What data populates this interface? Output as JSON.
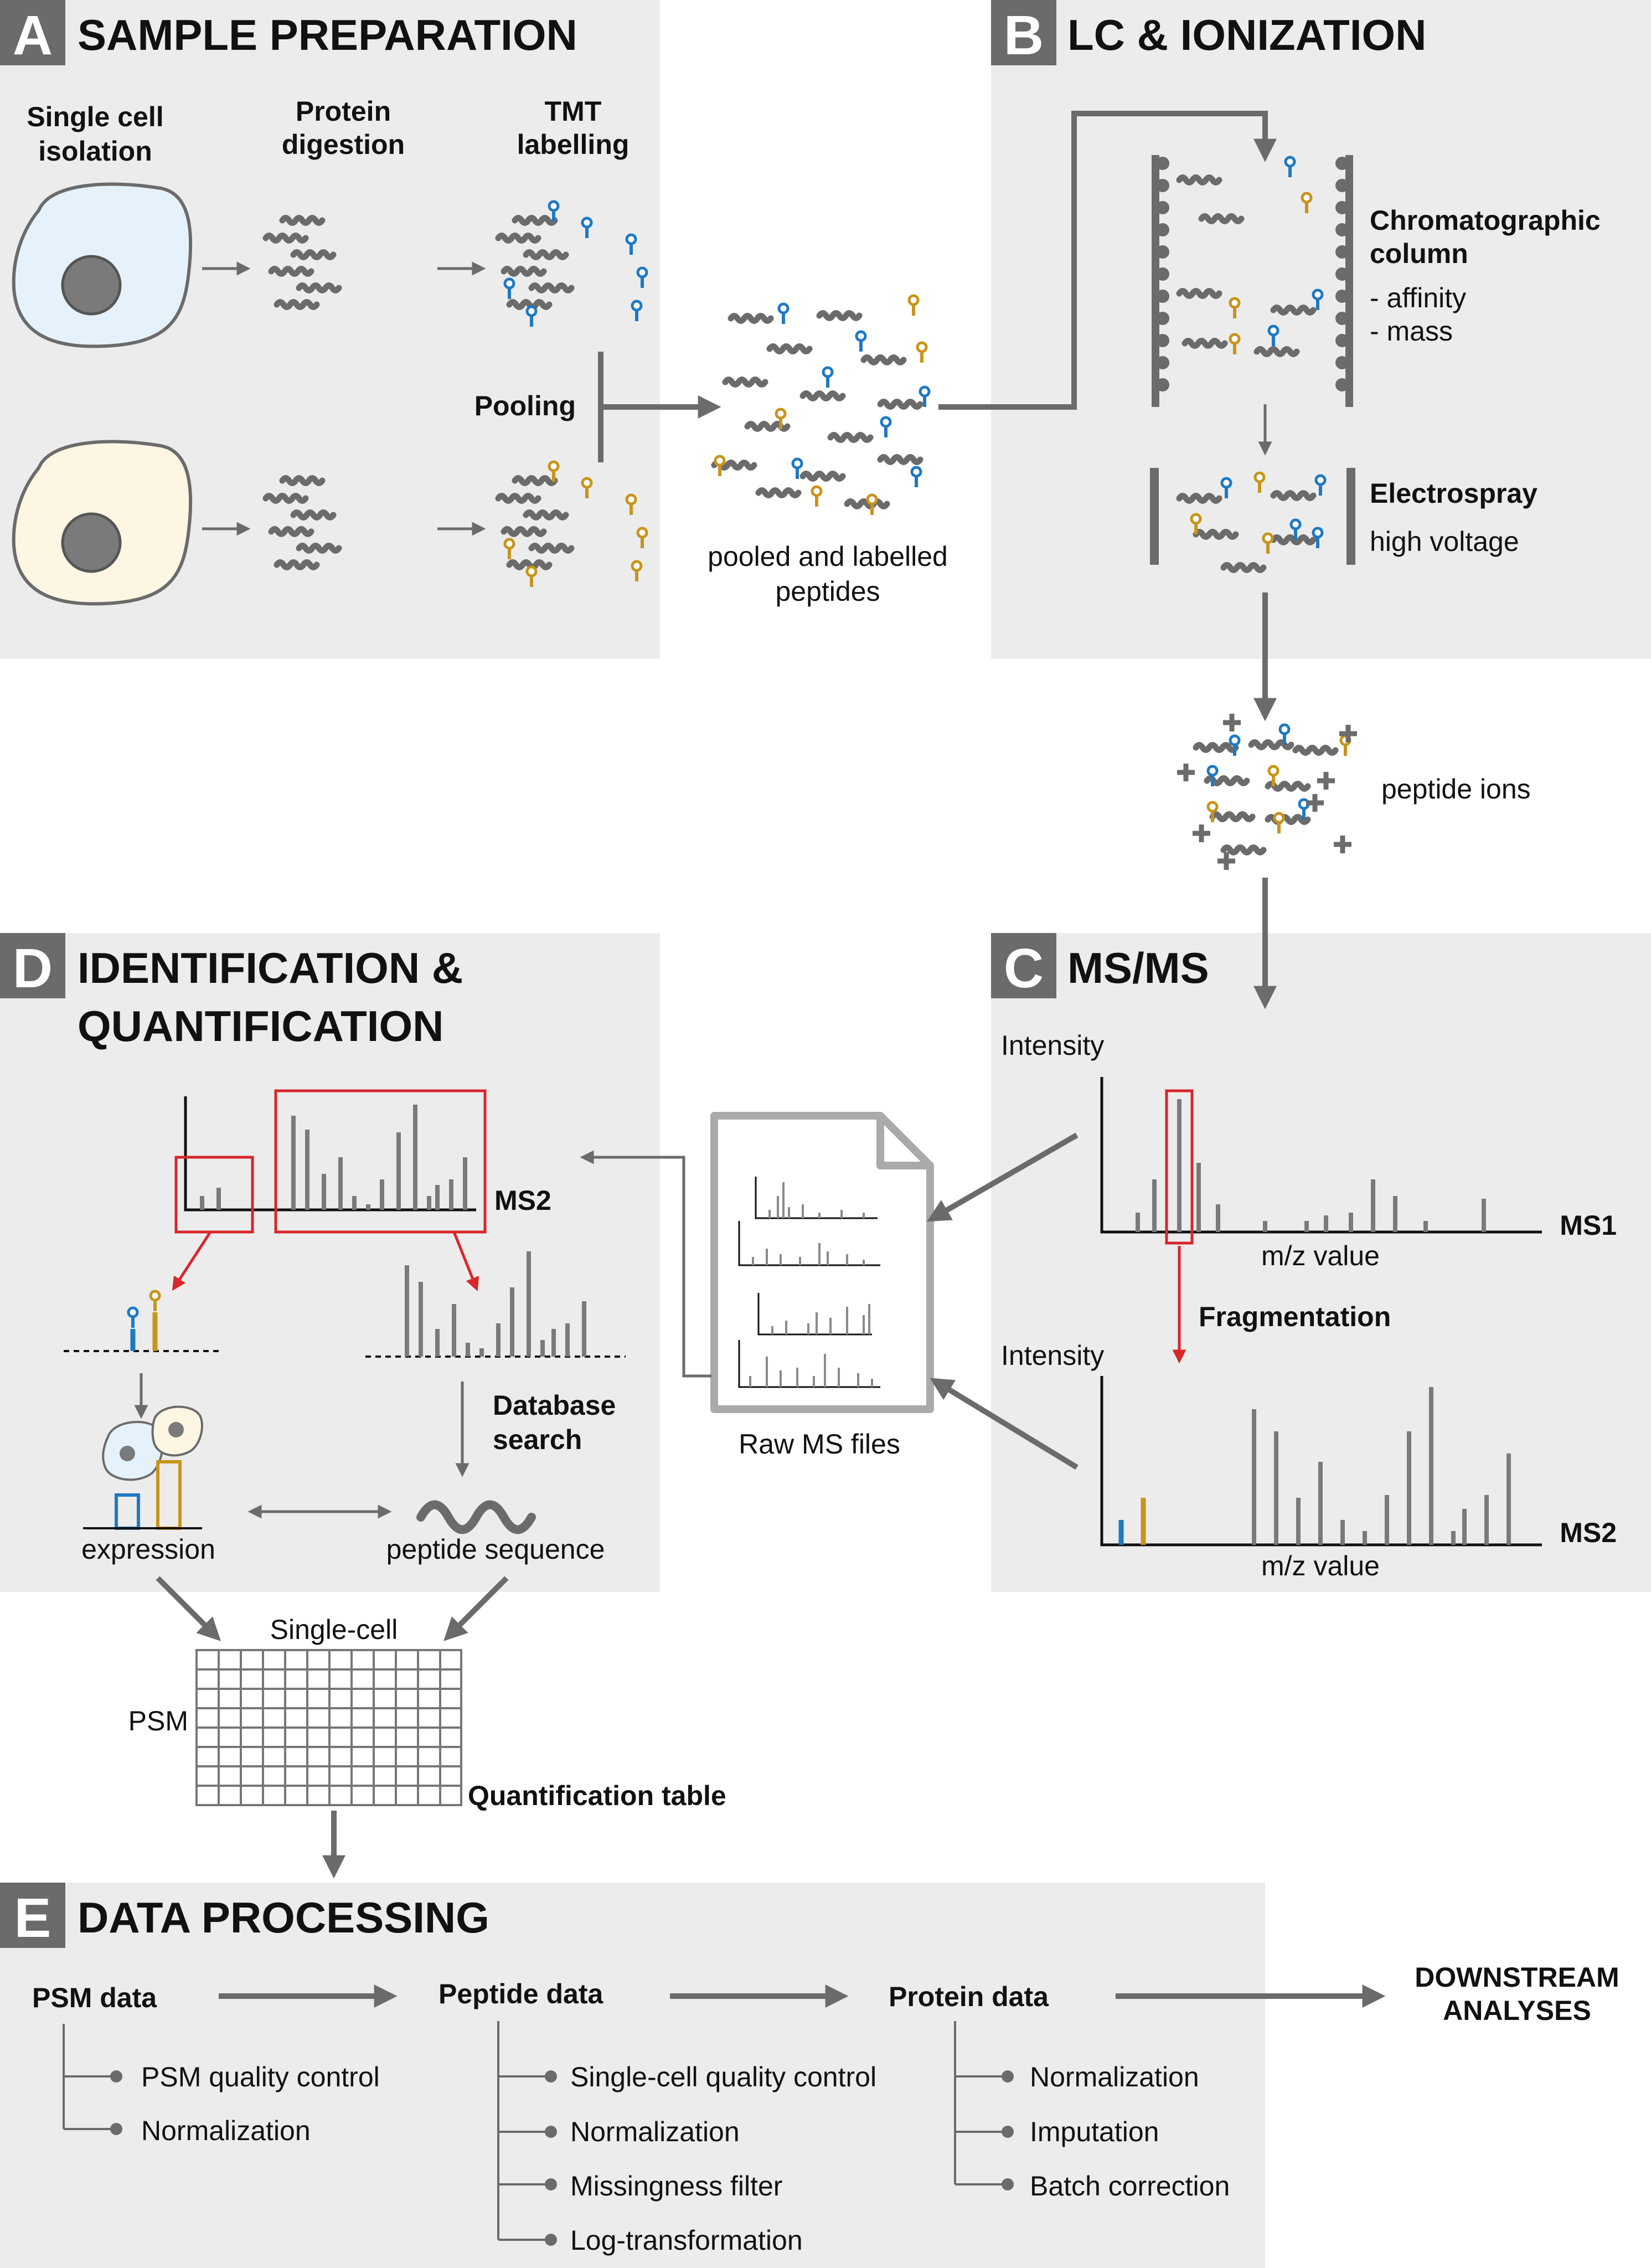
{
  "colors": {
    "panel_bg": "#ececec",
    "letter_box": "#6b6b6b",
    "arrow_gray": "#6b6b6b",
    "tag_blue": "#1d79c4",
    "tag_gold": "#c8941a",
    "highlight_red": "#d8262b",
    "cell_blue": "#e6f2fb",
    "cell_yellow": "#fdf6e3",
    "nucleus": "#7a7a7a"
  },
  "panel_a": {
    "letter": "A",
    "title": "SAMPLE PREPARATION",
    "step1": [
      "Single cell",
      "isolation"
    ],
    "step2": [
      "Protein",
      "digestion"
    ],
    "step3": [
      "TMT",
      "labelling"
    ],
    "pooling": "Pooling",
    "pooled": [
      "pooled and labelled",
      "peptides"
    ]
  },
  "panel_b": {
    "letter": "B",
    "title": "LC & IONIZATION",
    "column": [
      "Chromatographic",
      "column"
    ],
    "column_items": [
      "- affinity",
      "- mass"
    ],
    "electrospray": "Electrospray",
    "voltage": "high voltage",
    "ions": "peptide ions"
  },
  "panel_c": {
    "letter": "C",
    "title": "MS/MS",
    "intensity1": "Intensity",
    "mz1": "m/z value",
    "ms1": "MS1",
    "fragmentation": "Fragmentation",
    "intensity2": "Intensity",
    "mz2": "m/z value",
    "ms2": "MS2",
    "raw": "Raw MS files"
  },
  "panel_d": {
    "letter": "D",
    "title": [
      "IDENTIFICATION &",
      "QUANTIFICATION"
    ],
    "ms2": "MS2",
    "db": [
      "Database",
      "search"
    ],
    "expression": "expression",
    "peptide_seq": "peptide sequence",
    "single_cell": "Single-cell",
    "psm": "PSM",
    "quant_table": "Quantification table"
  },
  "panel_e": {
    "letter": "E",
    "title": "DATA PROCESSING",
    "psm_data": "PSM data",
    "psm_steps": [
      "PSM quality control",
      "Normalization"
    ],
    "peptide_data": "Peptide data",
    "peptide_steps": [
      "Single-cell quality control",
      "Normalization",
      "Missingness filter",
      "Log-transformation"
    ],
    "protein_data": "Protein data",
    "protein_steps": [
      "Normalization",
      "Imputation",
      "Batch correction"
    ],
    "downstream": [
      "DOWNSTREAM",
      "ANALYSES"
    ]
  }
}
